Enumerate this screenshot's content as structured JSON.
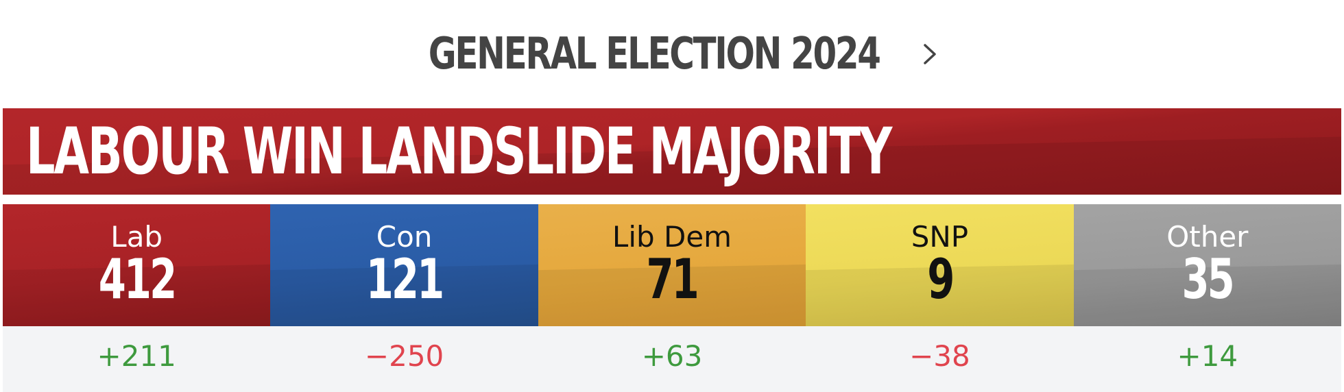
{
  "header": {
    "title": "GENERAL ELECTION 2024",
    "chevron_icon": "chevron-right-icon"
  },
  "headline": {
    "text": "LABOUR WIN LANDSLIDE MAJORITY",
    "color": "#b3262a"
  },
  "parties": [
    {
      "name": "Lab",
      "seats": "412",
      "change": "+211",
      "color": "#b3262a",
      "change_color": "#3e9a3e"
    },
    {
      "name": "Con",
      "seats": "121",
      "change": "−250",
      "color": "#2f63b0",
      "change_color": "#e0444e"
    },
    {
      "name": "Lib Dem",
      "seats": "71",
      "change": "+63",
      "color": "#e9b04a",
      "change_color": "#3e9a3e"
    },
    {
      "name": "SNP",
      "seats": "9",
      "change": "−38",
      "color": "#f2e060",
      "change_color": "#e0444e"
    },
    {
      "name": "Other",
      "seats": "35",
      "change": "+14",
      "color": "#a3a3a3",
      "change_color": "#3e9a3e"
    }
  ]
}
